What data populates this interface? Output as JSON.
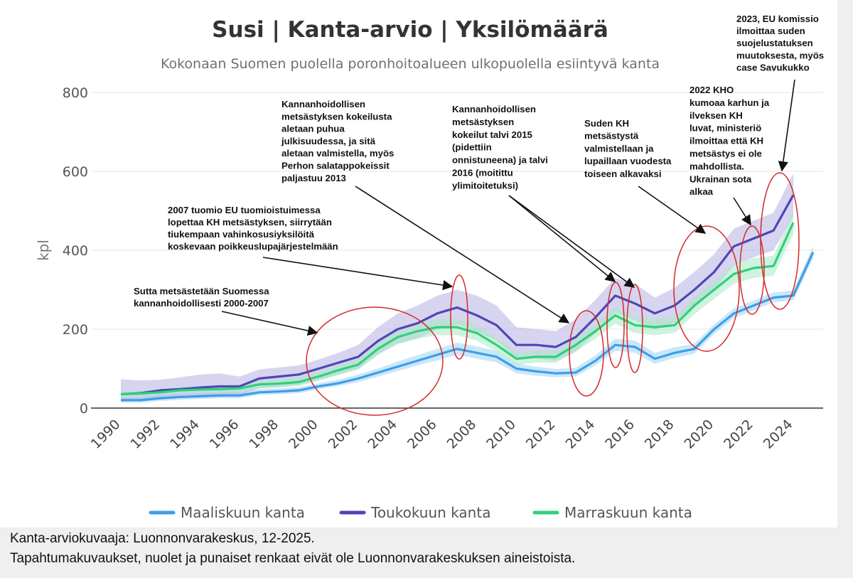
{
  "chart_data": {
    "type": "line",
    "title": "Susi | Kanta-arvio | Yksilömäärä",
    "subtitle": "Kokonaan Suomen puolella poronhoitoalueen ulkopuolella esiintyvä kanta",
    "ylabel": "kpl",
    "xlabel": "",
    "ylim": [
      0,
      800
    ],
    "yticks": [
      0,
      200,
      400,
      600,
      800
    ],
    "xlim": [
      1990,
      2025
    ],
    "xticks": [
      1990,
      1992,
      1994,
      1996,
      1998,
      2000,
      2002,
      2004,
      2006,
      2008,
      2010,
      2012,
      2014,
      2016,
      2018,
      2020,
      2022,
      2024
    ],
    "grid": true,
    "legend": "bottom",
    "series": [
      {
        "name": "Maaliskuun kanta",
        "color": "#3d9ee8",
        "band_color": "#9fd3f5",
        "x": [
          1990,
          1991,
          1992,
          1993,
          1994,
          1995,
          1996,
          1997,
          1998,
          1999,
          2000,
          2001,
          2002,
          2003,
          2004,
          2005,
          2006,
          2007,
          2008,
          2009,
          2010,
          2011,
          2012,
          2013,
          2014,
          2015,
          2016,
          2017,
          2018,
          2019,
          2020,
          2021,
          2022,
          2023,
          2024,
          2025
        ],
        "values": [
          20,
          20,
          25,
          28,
          30,
          32,
          32,
          40,
          42,
          45,
          55,
          63,
          75,
          90,
          105,
          120,
          135,
          150,
          140,
          130,
          100,
          93,
          88,
          90,
          120,
          160,
          155,
          125,
          140,
          150,
          200,
          240,
          260,
          280,
          285,
          395
        ],
        "lower": [
          14,
          14,
          18,
          21,
          23,
          25,
          25,
          33,
          35,
          38,
          48,
          56,
          66,
          80,
          94,
          108,
          121,
          135,
          125,
          116,
          88,
          82,
          78,
          80,
          108,
          145,
          140,
          112,
          127,
          138,
          188,
          228,
          248,
          268,
          273,
          380
        ],
        "upper": [
          27,
          27,
          33,
          36,
          38,
          40,
          40,
          48,
          50,
          53,
          63,
          72,
          85,
          100,
          118,
          134,
          150,
          166,
          156,
          145,
          113,
          105,
          99,
          102,
          134,
          176,
          171,
          140,
          154,
          163,
          212,
          253,
          273,
          293,
          298,
          410
        ]
      },
      {
        "name": "Toukokuun kanta",
        "color": "#4f46b6",
        "band_color": "#b6b0e2",
        "x": [
          1990,
          1991,
          1992,
          1993,
          1994,
          1995,
          1996,
          1997,
          1998,
          1999,
          2000,
          2001,
          2002,
          2003,
          2004,
          2005,
          2006,
          2007,
          2008,
          2009,
          2010,
          2011,
          2012,
          2013,
          2014,
          2015,
          2016,
          2017,
          2018,
          2019,
          2020,
          2021,
          2022,
          2023,
          2024
        ],
        "values": [
          35,
          38,
          45,
          48,
          52,
          55,
          55,
          75,
          80,
          85,
          100,
          115,
          130,
          170,
          200,
          215,
          240,
          255,
          235,
          210,
          160,
          160,
          155,
          180,
          230,
          285,
          265,
          240,
          260,
          300,
          345,
          410,
          430,
          450,
          540
        ],
        "lower": [
          20,
          21,
          25,
          28,
          31,
          33,
          33,
          50,
          54,
          58,
          72,
          85,
          100,
          137,
          164,
          176,
          199,
          212,
          193,
          171,
          126,
          126,
          120,
          143,
          190,
          242,
          222,
          199,
          216,
          255,
          300,
          362,
          382,
          400,
          485
        ],
        "upper": [
          73,
          70,
          72,
          78,
          85,
          88,
          80,
          98,
          103,
          108,
          123,
          140,
          160,
          205,
          240,
          260,
          285,
          300,
          285,
          260,
          205,
          200,
          195,
          225,
          275,
          330,
          315,
          280,
          305,
          345,
          390,
          455,
          475,
          495,
          595
        ]
      },
      {
        "name": "Marraskuun kanta",
        "color": "#2ed17a",
        "band_color": "#a5eac4",
        "x": [
          1990,
          1991,
          1992,
          1993,
          1994,
          1995,
          1996,
          1997,
          1998,
          1999,
          2000,
          2001,
          2002,
          2003,
          2004,
          2005,
          2006,
          2007,
          2008,
          2009,
          2010,
          2011,
          2012,
          2013,
          2014,
          2015,
          2016,
          2017,
          2018,
          2019,
          2020,
          2021,
          2022,
          2023,
          2024
        ],
        "values": [
          35,
          37,
          40,
          45,
          47,
          48,
          50,
          60,
          62,
          66,
          80,
          96,
          110,
          150,
          180,
          195,
          205,
          205,
          190,
          160,
          125,
          130,
          130,
          160,
          195,
          235,
          210,
          205,
          210,
          260,
          300,
          340,
          355,
          360,
          470
        ],
        "lower": [
          28,
          30,
          32,
          37,
          38,
          39,
          41,
          50,
          52,
          56,
          69,
          84,
          97,
          134,
          162,
          176,
          185,
          185,
          171,
          143,
          110,
          115,
          115,
          143,
          176,
          214,
          190,
          185,
          190,
          238,
          277,
          315,
          330,
          335,
          440
        ],
        "upper": [
          43,
          45,
          48,
          54,
          56,
          58,
          60,
          70,
          73,
          77,
          92,
          109,
          124,
          167,
          199,
          215,
          226,
          226,
          210,
          178,
          141,
          146,
          146,
          178,
          215,
          256,
          231,
          226,
          231,
          283,
          323,
          365,
          380,
          386,
          500
        ]
      }
    ],
    "annotations": [
      {
        "lines": [
          "Sutta metsästetään  Suomessa",
          "kannanhoidollisesti  2000-2007"
        ]
      },
      {
        "lines": [
          "2007 tuomio EU tuomioistuimessa",
          "lopettaa KH metsästyksen,  siirrytään",
          "tiukempaan  vahinkosusiyksilöitä",
          "koskevaan  poikkeuslupajärjestelmään"
        ]
      },
      {
        "lines": [
          "Kannanhoidollisen",
          "metsästyksen kokeilusta",
          "aletaan puhua",
          "julkisuudessa,  ja sitä",
          "aletaan valmistella,  myös",
          "Perhon salatappokeissit",
          "paljastuu 2013"
        ]
      },
      {
        "lines": [
          "Kannanhoidollisen",
          "metsästyksen",
          "kokeilut talvi 2015",
          "(pidettiin",
          "onnistuneena) ja talvi",
          "2016 (moitittu",
          "ylimitoitetuksi)"
        ]
      },
      {
        "lines": [
          "Suden KH",
          "metsästystä",
          "valmistellaan  ja",
          "lupaillaan  vuodesta",
          "toiseen alkavaksi"
        ]
      },
      {
        "lines": [
          "2022 KHO",
          "kumoaa karhun ja",
          "ilveksen KH",
          "luvat, ministeriö",
          "ilmoittaa että KH",
          "metsästys ei ole",
          "mahdollista.",
          "Ukrainan sota",
          "alkaa"
        ]
      },
      {
        "lines": [
          "2023, EU komissio",
          "ilmoittaa  suden",
          "suojelustatuksen",
          "muutoksesta,  myös",
          "case  Savukukko"
        ]
      }
    ]
  },
  "footer": {
    "line1": "Kanta-arviokuvaaja: Luonnonvarakeskus, 12-2025.",
    "line2": "Tapahtumakuvaukset, nuolet ja punaiset renkaat eivät ole Luonnonvarakeskuksen aineistoista."
  },
  "colors": {
    "circle": "#d42a2a",
    "arrow": "#111111",
    "grid": "#e4e4e4"
  }
}
